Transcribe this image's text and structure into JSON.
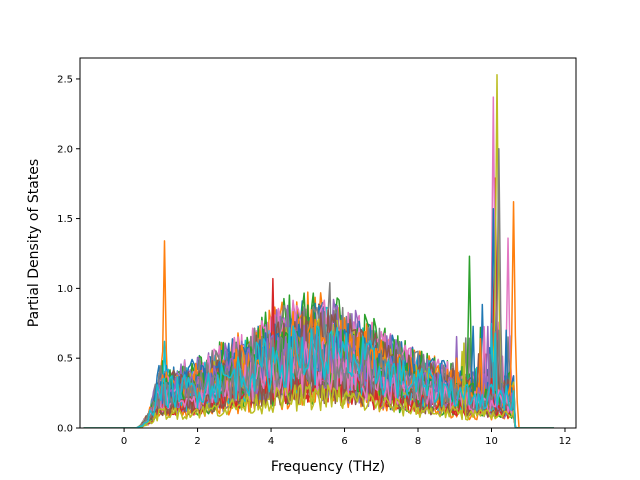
{
  "chart_data": {
    "type": "line",
    "title": "",
    "xlabel": "Frequency (THz)",
    "ylabel": "Partial Density of States",
    "xlim": [
      -1.2,
      12.3
    ],
    "ylim": [
      0.0,
      2.65
    ],
    "xticks": [
      0,
      2,
      4,
      6,
      8,
      10,
      12
    ],
    "yticks": [
      0.0,
      0.5,
      1.0,
      1.5,
      2.0,
      2.5
    ],
    "xtick_labels": [
      "0",
      "2",
      "4",
      "6",
      "8",
      "10",
      "12"
    ],
    "ytick_labels": [
      "0.0",
      "0.5",
      "1.0",
      "1.5",
      "2.0",
      "2.5"
    ],
    "grid": false,
    "legend": "none",
    "colors": [
      "#1f77b4",
      "#ff7f0e",
      "#2ca02c",
      "#d62728",
      "#9467bd",
      "#8c564b",
      "#e377c2",
      "#7f7f7f",
      "#bcbd22",
      "#17becf"
    ],
    "frequency_range": [
      -1.1,
      11.7
    ],
    "nonzero_range": [
      0.3,
      10.65
    ],
    "series_count": 40,
    "peaks": [
      {
        "x": 1.1,
        "y": 1.34,
        "color": "#ff7f0e"
      },
      {
        "x": 1.1,
        "y": 0.62,
        "color": "#17becf"
      },
      {
        "x": 9.4,
        "y": 1.23,
        "color": "#2ca02c"
      },
      {
        "x": 10.05,
        "y": 2.37,
        "color": "#e377c2"
      },
      {
        "x": 10.15,
        "y": 2.53,
        "color": "#bcbd22"
      },
      {
        "x": 10.2,
        "y": 2.0,
        "color": "#7f7f7f"
      },
      {
        "x": 10.1,
        "y": 1.79,
        "color": "#d62728"
      },
      {
        "x": 10.05,
        "y": 1.57,
        "color": "#1f77b4"
      },
      {
        "x": 10.6,
        "y": 1.62,
        "color": "#ff7f0e"
      },
      {
        "x": 10.45,
        "y": 1.36,
        "color": "#e377c2"
      },
      {
        "x": 5.6,
        "y": 1.04,
        "color": "#7f7f7f"
      },
      {
        "x": 4.05,
        "y": 1.07,
        "color": "#d62728"
      }
    ]
  }
}
